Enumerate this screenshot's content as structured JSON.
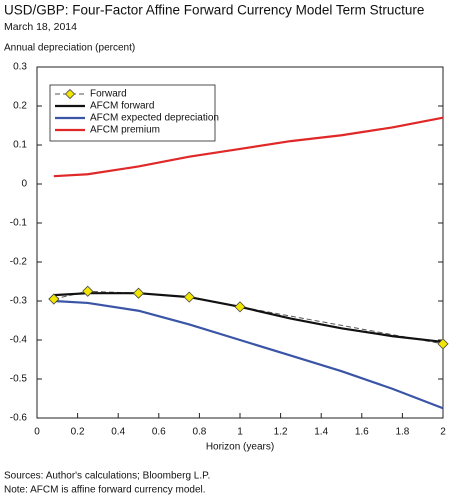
{
  "chart_data": {
    "type": "line",
    "title": "USD/GBP: Four-Factor Affine Forward Currency Model Term Structure",
    "subtitle": "March 18, 2014",
    "y_label": "Annual depreciation (percent)",
    "x_label": "Horizon (years)",
    "sources": "Sources: Author's calculations; Bloomberg L.P.",
    "note": "Note: AFCM is affine forward currency model.",
    "xlim": [
      0,
      2
    ],
    "xticks": [
      0,
      0.2,
      0.4,
      0.6,
      0.8,
      1,
      1.2,
      1.4,
      1.6,
      1.8,
      2
    ],
    "ylim": [
      -0.6,
      0.3
    ],
    "yticks": [
      -0.6,
      -0.5,
      -0.4,
      -0.3,
      -0.2,
      -0.1,
      0,
      0.1,
      0.2,
      0.3
    ],
    "legend": "upper-left",
    "series": [
      {
        "name": "Forward",
        "color": "#555555",
        "dash": true,
        "marker": "diamond",
        "marker_color": "#f2e600",
        "x": [
          0.083,
          0.25,
          0.5,
          0.75,
          1,
          2
        ],
        "values": [
          -0.295,
          -0.275,
          -0.28,
          -0.29,
          -0.315,
          -0.41
        ]
      },
      {
        "name": "AFCM forward",
        "color": "#111111",
        "x": [
          0.083,
          0.25,
          0.5,
          0.75,
          1,
          1.25,
          1.5,
          1.75,
          2
        ],
        "values": [
          -0.285,
          -0.28,
          -0.28,
          -0.29,
          -0.315,
          -0.345,
          -0.37,
          -0.39,
          -0.405
        ]
      },
      {
        "name": "AFCM expected depreciation",
        "color": "#3a55a6",
        "x": [
          0.083,
          0.25,
          0.5,
          0.75,
          1,
          1.25,
          1.5,
          1.75,
          2
        ],
        "values": [
          -0.3,
          -0.305,
          -0.325,
          -0.36,
          -0.4,
          -0.44,
          -0.48,
          -0.525,
          -0.575
        ]
      },
      {
        "name": "AFCM premium",
        "color": "#e02828",
        "x": [
          0.083,
          0.25,
          0.5,
          0.75,
          1,
          1.25,
          1.5,
          1.75,
          2
        ],
        "values": [
          0.02,
          0.025,
          0.045,
          0.07,
          0.09,
          0.11,
          0.125,
          0.145,
          0.17
        ]
      }
    ]
  }
}
